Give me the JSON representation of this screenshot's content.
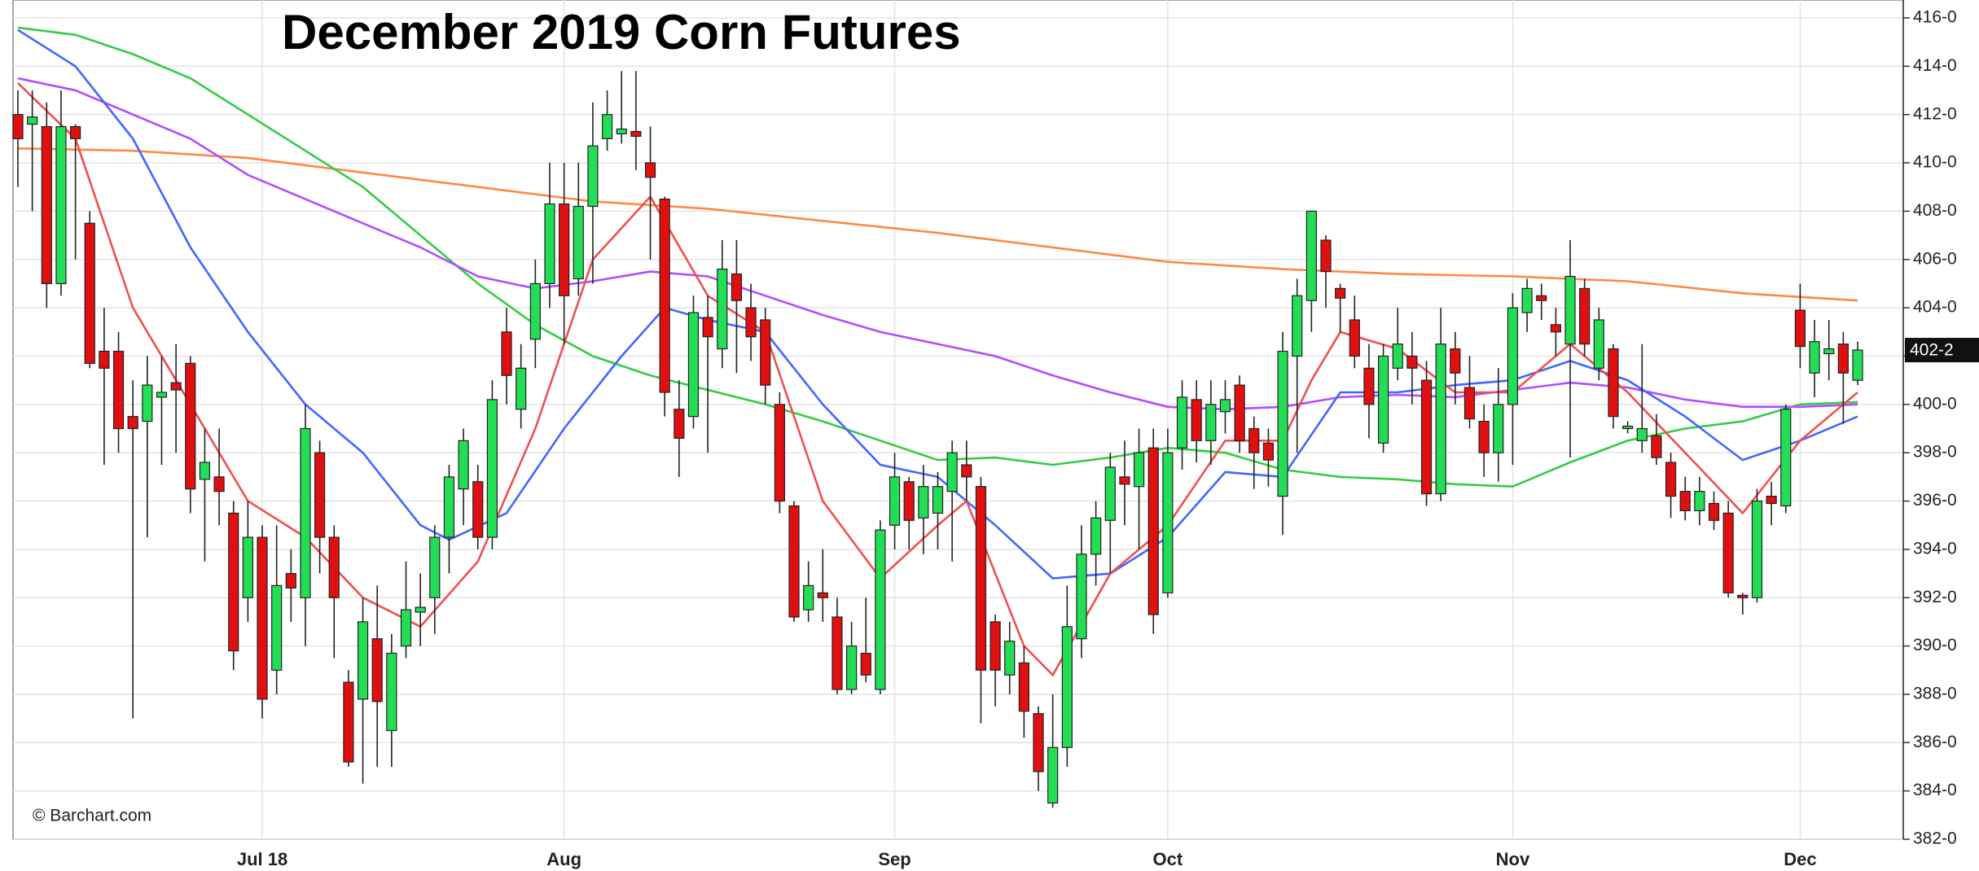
{
  "chart_data": {
    "type": "candlestick",
    "title": "December 2019 Corn Futures",
    "source_note": "© Barchart.com",
    "last_price_label": "402-2",
    "up_color": "#22dd55",
    "down_color": "#e01010",
    "grid": true,
    "categories": [
      null,
      null,
      null,
      null,
      null,
      null,
      null,
      null,
      null,
      null,
      null,
      null,
      null,
      null,
      null,
      null,
      null,
      "Jul 18",
      null,
      null,
      null,
      null,
      null,
      null,
      null,
      null,
      null,
      null,
      null,
      null,
      null,
      null,
      null,
      null,
      null,
      null,
      null,
      null,
      "Aug",
      null,
      null,
      null,
      null,
      null,
      null,
      null,
      null,
      null,
      null,
      null,
      null,
      null,
      null,
      null,
      null,
      null,
      null,
      null,
      null,
      null,
      null,
      "Sep",
      null,
      null,
      null,
      null,
      null,
      null,
      null,
      null,
      null,
      null,
      null,
      null,
      null,
      null,
      null,
      null,
      null,
      null,
      "Oct",
      null,
      null,
      null,
      null,
      null,
      null,
      null,
      null,
      null,
      null,
      null,
      null,
      null,
      null,
      null,
      null,
      null,
      null,
      null,
      null,
      null,
      null,
      null,
      "Nov",
      null,
      null,
      null,
      null,
      null,
      null,
      null,
      null,
      null,
      null,
      null,
      null,
      null,
      null,
      null,
      null,
      null,
      null,
      null,
      "Dec",
      null,
      null,
      null,
      null
    ],
    "open": [
      412,
      411.6,
      411.5,
      405,
      411.5,
      407.5,
      402.2,
      402.2,
      399.5,
      399.3,
      400.3,
      400.9,
      401.7,
      396.9,
      397,
      395.5,
      392,
      394.5,
      389,
      393,
      392,
      398,
      394.5,
      388.5,
      387.8,
      390.3,
      386.5,
      390,
      391.4,
      392,
      394.5,
      396.5,
      396.8,
      394.5,
      403,
      399.8,
      402.7,
      405,
      408.3,
      405.2,
      408.2,
      411,
      411.2,
      411.3,
      410,
      408.5,
      399.8,
      399.5,
      403.6,
      402.3,
      405.4,
      404,
      403.5,
      400,
      395.8,
      391.5,
      392.2,
      391.2,
      388.2,
      389.7,
      388.2,
      395,
      396.8,
      395.3,
      395.5,
      396.4,
      397.5,
      396.6,
      391,
      388.8,
      389.3,
      387.2,
      383.5,
      385.8,
      390.3,
      393.8,
      395.2,
      397,
      396.6,
      398.2,
      392.2,
      398.2,
      400.2,
      398.5,
      399.7,
      400.8,
      399,
      398.4,
      396.2,
      402,
      404.3,
      406.8,
      404.8,
      403.5,
      401.5,
      398.4,
      401.5,
      402,
      401,
      396.3,
      402.3,
      400.7,
      399.3,
      398,
      400,
      403.8,
      404.5,
      403.3,
      402.5,
      404.8,
      401.5,
      402.3,
      399,
      398.5,
      398.7,
      397.6,
      396.4,
      395.6,
      395.9,
      395.5,
      392.1,
      392,
      396.2,
      395.8,
      403.9,
      401.3,
      402.1,
      402.5,
      401
    ],
    "high": [
      413,
      413,
      412.5,
      413,
      411.6,
      408,
      404,
      403,
      401,
      402,
      402,
      402.5,
      402,
      399,
      399,
      396,
      396,
      395,
      395,
      394,
      400,
      398.5,
      395,
      389,
      392,
      392.5,
      390.5,
      393.5,
      393,
      395,
      397.5,
      399,
      397.5,
      401,
      404,
      402.5,
      406,
      410,
      410,
      410,
      412.5,
      413,
      413.8,
      413.8,
      411.5,
      408.6,
      401,
      404.5,
      404.5,
      406.8,
      406.8,
      405,
      404,
      400.5,
      396,
      393.5,
      394,
      392,
      391,
      392,
      395.2,
      398,
      397,
      397.5,
      397.2,
      398.5,
      398.5,
      397,
      391.3,
      391,
      390,
      387.5,
      388,
      392.5,
      395,
      396,
      398,
      398.5,
      399,
      399,
      399,
      401,
      401,
      401,
      401,
      401.2,
      399.5,
      399,
      403,
      405.2,
      408,
      407,
      405,
      404.5,
      402.5,
      402.5,
      404,
      403,
      401.8,
      404,
      403,
      402,
      400,
      401.5,
      404.6,
      405.2,
      405,
      404,
      406.8,
      405.2,
      404,
      402.5,
      399.3,
      402.5,
      399.6,
      398,
      397,
      397,
      396.4,
      396,
      392.2,
      396.5,
      396.8,
      400,
      405,
      403.5,
      403.5,
      403,
      402.6
    ],
    "low": [
      409,
      408,
      404,
      404.5,
      406,
      401.5,
      397.5,
      398,
      387,
      394.5,
      397.5,
      398,
      395.5,
      393.5,
      395,
      389,
      391,
      387,
      388,
      391,
      390,
      393,
      389.5,
      385,
      384.3,
      385,
      385,
      389.5,
      390,
      390.5,
      393,
      395,
      394,
      394,
      400,
      399,
      401.5,
      404,
      402.5,
      404.5,
      405,
      410.5,
      410.8,
      409.7,
      406,
      399.5,
      397,
      399,
      398,
      401.5,
      401.3,
      401.8,
      400,
      395.5,
      391,
      391,
      391,
      388,
      388,
      388.5,
      388,
      394,
      394,
      393.8,
      394,
      393.5,
      396,
      386.8,
      387.5,
      388,
      386.2,
      384,
      383.3,
      385,
      389.5,
      392.5,
      393,
      395,
      394,
      390.5,
      392,
      397.3,
      397.6,
      397.5,
      398.8,
      398,
      396.5,
      396.6,
      394.6,
      398,
      403,
      404,
      403,
      401.5,
      398.6,
      398,
      401,
      400,
      395.8,
      396,
      400,
      399,
      397,
      396.8,
      397.5,
      403,
      403.5,
      402,
      397.8,
      402,
      401,
      399,
      398.8,
      398,
      397.5,
      395.3,
      395.2,
      395,
      394.8,
      392,
      391.3,
      391.8,
      395,
      395.5,
      401.5,
      400.3,
      401,
      399.2,
      400.8
    ],
    "close": [
      411,
      411.9,
      405,
      411.5,
      411,
      401.7,
      401.5,
      399,
      399,
      400.8,
      400.5,
      400.6,
      396.5,
      397.6,
      396.4,
      389.8,
      394.5,
      387.8,
      392.5,
      392.4,
      399,
      394.5,
      392,
      385.2,
      391,
      387.7,
      389.7,
      391.5,
      391.6,
      394.5,
      397,
      398.5,
      394.5,
      400.2,
      401.2,
      401.5,
      405,
      408.3,
      404.5,
      408.2,
      410.7,
      412,
      411.4,
      411.1,
      409.4,
      400.5,
      398.6,
      403.8,
      402.8,
      405.6,
      404.3,
      402.8,
      400.8,
      396,
      391.2,
      392.5,
      392,
      388.2,
      390,
      388.8,
      394.8,
      397,
      395.2,
      396.6,
      396.6,
      398,
      397,
      389,
      389,
      390.2,
      387.3,
      384.8,
      385.8,
      390.8,
      393.8,
      395.3,
      397.4,
      396.7,
      398,
      391.3,
      398,
      400.3,
      398.5,
      400,
      400.2,
      398.5,
      398,
      397.7,
      402.2,
      404.5,
      408,
      405.5,
      404.4,
      402,
      400,
      402,
      402.5,
      401.5,
      396.3,
      402.5,
      401.3,
      399.4,
      398,
      400,
      404,
      404.8,
      404.3,
      403,
      405.3,
      402.5,
      403.5,
      399.5,
      399.1,
      399,
      397.8,
      396.2,
      395.6,
      396.4,
      395.2,
      392.2,
      392,
      396,
      395.9,
      399.8,
      402.4,
      402.6,
      402.3,
      401.3,
      402.25
    ],
    "moving_averages": [
      {
        "color": "#ff8844",
        "x": [
          0,
          8,
          16,
          24,
          32,
          40,
          48,
          56,
          64,
          72,
          80,
          88,
          96,
          104,
          112,
          120,
          128
        ],
        "values": [
          410.6,
          410.5,
          410.2,
          409.6,
          409,
          408.4,
          408.1,
          407.6,
          407.1,
          406.5,
          405.9,
          405.6,
          405.4,
          405.3,
          405.1,
          404.6,
          404.3
        ]
      },
      {
        "color": "#33cc44",
        "x": [
          0,
          4,
          8,
          12,
          16,
          20,
          24,
          28,
          32,
          36,
          40,
          44,
          48,
          52,
          56,
          60,
          64,
          68,
          72,
          76,
          80,
          84,
          88,
          92,
          96,
          100,
          104,
          108,
          112,
          116,
          120,
          124,
          128
        ],
        "values": [
          415.6,
          415.3,
          414.5,
          413.5,
          412,
          410.5,
          409,
          407,
          405,
          403.3,
          402,
          401.2,
          400.6,
          400,
          399.3,
          398.5,
          397.7,
          397.8,
          397.5,
          397.8,
          398.2,
          398,
          397.3,
          397,
          396.9,
          396.7,
          396.6,
          397.6,
          398.5,
          399,
          399.3,
          400,
          400.1
        ]
      },
      {
        "color": "#b14cff",
        "x": [
          0,
          4,
          8,
          12,
          16,
          20,
          24,
          28,
          32,
          36,
          40,
          44,
          48,
          52,
          56,
          60,
          64,
          68,
          72,
          76,
          80,
          84,
          88,
          92,
          96,
          100,
          104,
          108,
          112,
          116,
          120,
          124,
          128
        ],
        "values": [
          413.5,
          413,
          412,
          411,
          409.5,
          408.5,
          407.5,
          406.5,
          405.3,
          404.8,
          405.1,
          405.5,
          405.3,
          404.5,
          403.7,
          403,
          402.5,
          402,
          401.2,
          400.5,
          399.9,
          399.8,
          399.9,
          400.3,
          400.4,
          400.3,
          400.6,
          400.9,
          400.7,
          400.2,
          399.9,
          399.9,
          400
        ]
      },
      {
        "color": "#4466ff",
        "x": [
          0,
          4,
          8,
          12,
          16,
          20,
          24,
          28,
          30,
          34,
          38,
          42,
          45,
          48,
          52,
          56,
          60,
          64,
          68,
          72,
          76,
          80,
          84,
          88,
          92,
          96,
          100,
          104,
          108,
          112,
          116,
          120,
          124,
          128
        ],
        "values": [
          415.5,
          414,
          411,
          406.5,
          403,
          400,
          398,
          395,
          394.4,
          395.5,
          399,
          402,
          404,
          403.5,
          403,
          400,
          397.5,
          397,
          395,
          392.8,
          393,
          394.5,
          397.2,
          397,
          400.5,
          400.5,
          400.8,
          401,
          401.8,
          401,
          399.5,
          397.7,
          398.5,
          399.5
        ]
      },
      {
        "color": "#f05050",
        "x": [
          0,
          4,
          8,
          12,
          16,
          20,
          24,
          28,
          32,
          36,
          40,
          44,
          48,
          52,
          56,
          60,
          64,
          66,
          70,
          72,
          76,
          80,
          84,
          88,
          90,
          92,
          96,
          100,
          104,
          108,
          112,
          116,
          120,
          124,
          128
        ],
        "values": [
          413.3,
          411,
          404,
          400,
          396,
          394.5,
          392,
          390.8,
          393.5,
          399,
          406,
          408.6,
          404.5,
          403,
          396,
          392.8,
          395,
          396,
          390,
          388.8,
          393,
          395,
          398.5,
          398.5,
          401,
          403,
          402.3,
          400.5,
          400.5,
          402.5,
          400.5,
          398,
          395.5,
          398.5,
          400.5
        ]
      }
    ],
    "ylim": [
      382,
      416
    ],
    "yticks": [
      {
        "value": 382,
        "label": "382-0"
      },
      {
        "value": 384,
        "label": "384-0"
      },
      {
        "value": 386,
        "label": "386-0"
      },
      {
        "value": 388,
        "label": "388-0"
      },
      {
        "value": 390,
        "label": "390-0"
      },
      {
        "value": 392,
        "label": "392-0"
      },
      {
        "value": 394,
        "label": "394-0"
      },
      {
        "value": 396,
        "label": "396-0"
      },
      {
        "value": 398,
        "label": "398-0"
      },
      {
        "value": 400,
        "label": "400-0"
      },
      {
        "value": 402,
        "label": "402-0"
      },
      {
        "value": 404,
        "label": "404-0"
      },
      {
        "value": 406,
        "label": "406-0"
      },
      {
        "value": 408,
        "label": "408-0"
      },
      {
        "value": 410,
        "label": "410-0"
      },
      {
        "value": 412,
        "label": "412-0"
      },
      {
        "value": 414,
        "label": "414-0"
      },
      {
        "value": 416,
        "label": "416-0"
      }
    ]
  }
}
